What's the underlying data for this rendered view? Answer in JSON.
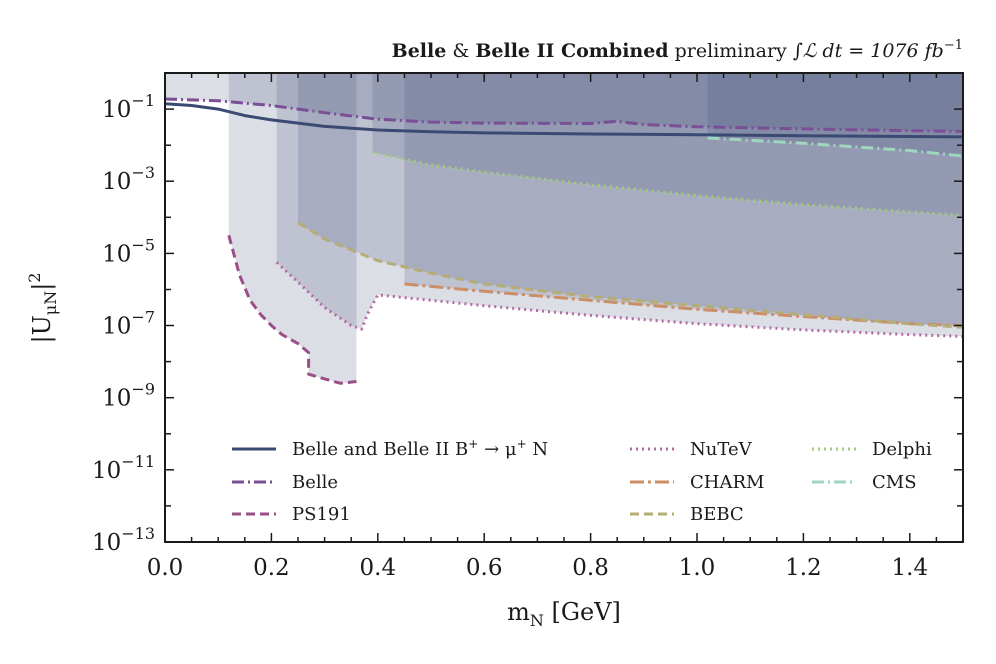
{
  "chart_data": {
    "type": "line",
    "title": {
      "bold1": "Belle",
      "amp": "&",
      "bold2": "Belle II Combined",
      "rest": "preliminary",
      "integral": "∫ℒ dt = 1076 fb",
      "exponent": "−1"
    },
    "xlabel": {
      "base": "m",
      "sub": "N",
      "unit": " [GeV]"
    },
    "ylabel": {
      "pre": "|U",
      "sub": "μN",
      "post": "|",
      "sup": "2"
    },
    "xlim": [
      0.0,
      1.5
    ],
    "ylim_log10": [
      -13,
      0
    ],
    "xticks": [
      {
        "v": 0.0,
        "label": "0.0"
      },
      {
        "v": 0.2,
        "label": "0.2"
      },
      {
        "v": 0.4,
        "label": "0.4"
      },
      {
        "v": 0.6,
        "label": "0.6"
      },
      {
        "v": 0.8,
        "label": "0.8"
      },
      {
        "v": 1.0,
        "label": "1.0"
      },
      {
        "v": 1.2,
        "label": "1.2"
      },
      {
        "v": 1.4,
        "label": "1.4"
      }
    ],
    "yticks": [
      {
        "exp": -1,
        "base": "10",
        "sup": "−1"
      },
      {
        "exp": -3,
        "base": "10",
        "sup": "−3"
      },
      {
        "exp": -5,
        "base": "10",
        "sup": "−5"
      },
      {
        "exp": -7,
        "base": "10",
        "sup": "−7"
      },
      {
        "exp": -9,
        "base": "10",
        "sup": "−9"
      },
      {
        "exp": -11,
        "base": "10",
        "sup": "−11"
      },
      {
        "exp": -13,
        "base": "10",
        "sup": "−13"
      }
    ],
    "series": [
      {
        "id": "belle2",
        "name": "Belle and Belle II B",
        "name_sup1": "+",
        "name_arrow": " → μ",
        "name_sup2": "+",
        "name_end": " N",
        "color": "#3b4a72",
        "dash": "solid",
        "fill": false,
        "x": [
          0.0,
          0.05,
          0.1,
          0.15,
          0.2,
          0.3,
          0.4,
          0.5,
          0.6,
          0.8,
          1.0,
          1.2,
          1.4,
          1.5
        ],
        "log10y": [
          -0.85,
          -0.9,
          -1.0,
          -1.18,
          -1.3,
          -1.48,
          -1.58,
          -1.63,
          -1.66,
          -1.69,
          -1.71,
          -1.74,
          -1.76,
          -1.77
        ]
      },
      {
        "id": "belle",
        "name": "Belle",
        "color": "#7a4f95",
        "dash": "dashdot",
        "fill": true,
        "x": [
          0.0,
          0.1,
          0.2,
          0.3,
          0.4,
          0.5,
          0.6,
          0.8,
          0.85,
          0.9,
          1.0,
          1.2,
          1.4,
          1.5
        ],
        "log10y": [
          -0.72,
          -0.77,
          -0.9,
          -1.1,
          -1.28,
          -1.36,
          -1.39,
          -1.4,
          -1.34,
          -1.43,
          -1.49,
          -1.55,
          -1.6,
          -1.62
        ]
      },
      {
        "id": "ps191",
        "name": "PS191",
        "color": "#9a4f86",
        "dash": "dashed",
        "fill": true,
        "x": [
          0.12,
          0.14,
          0.16,
          0.18,
          0.2,
          0.22,
          0.25,
          0.27,
          0.27,
          0.3,
          0.33,
          0.36
        ],
        "log10y": [
          -4.5,
          -5.6,
          -6.3,
          -6.7,
          -7.0,
          -7.25,
          -7.5,
          -7.75,
          -8.35,
          -8.48,
          -8.6,
          -8.55
        ]
      },
      {
        "id": "nutev",
        "name": "NuTeV",
        "color": "#b56aa5",
        "dash": "dotted",
        "fill": true,
        "x": [
          0.21,
          0.25,
          0.3,
          0.35,
          0.37,
          0.38,
          0.4,
          0.6,
          0.8,
          1.0,
          1.2,
          1.4,
          1.5
        ],
        "log10y": [
          -5.25,
          -5.8,
          -6.5,
          -7.0,
          -7.1,
          -6.7,
          -6.15,
          -6.45,
          -6.72,
          -6.95,
          -7.12,
          -7.25,
          -7.3
        ]
      },
      {
        "id": "charm",
        "name": "CHARM",
        "color": "#cc8e66",
        "dash": "longdashdot",
        "fill": true,
        "x": [
          0.45,
          0.6,
          0.8,
          1.0,
          1.2,
          1.4,
          1.5
        ],
        "log10y": [
          -5.85,
          -6.05,
          -6.3,
          -6.55,
          -6.75,
          -6.95,
          -7.0
        ]
      },
      {
        "id": "bebc",
        "name": "BEBC",
        "color": "#b5ad78",
        "dash": "dashed",
        "fill": true,
        "x": [
          0.25,
          0.3,
          0.4,
          0.5,
          0.6,
          0.8,
          1.0,
          1.2,
          1.4,
          1.5
        ],
        "log10y": [
          -4.15,
          -4.6,
          -5.2,
          -5.55,
          -5.85,
          -6.2,
          -6.45,
          -6.7,
          -6.95,
          -7.05
        ]
      },
      {
        "id": "delphi",
        "name": "Delphi",
        "color": "#a3cc7a",
        "dash": "dotted",
        "fill": true,
        "x": [
          0.39,
          0.5,
          0.6,
          0.8,
          1.0,
          1.2,
          1.4,
          1.5
        ],
        "log10y": [
          -2.2,
          -2.55,
          -2.75,
          -3.1,
          -3.4,
          -3.65,
          -3.85,
          -3.95
        ]
      },
      {
        "id": "cms",
        "name": "CMS",
        "color": "#9ed6c0",
        "dash": "dashdot",
        "fill": true,
        "x": [
          1.02,
          1.2,
          1.4,
          1.5
        ],
        "log10y": [
          -1.8,
          -1.95,
          -2.15,
          -2.3
        ]
      }
    ],
    "legend": {
      "placement": "lower-center",
      "columns": 3
    }
  }
}
